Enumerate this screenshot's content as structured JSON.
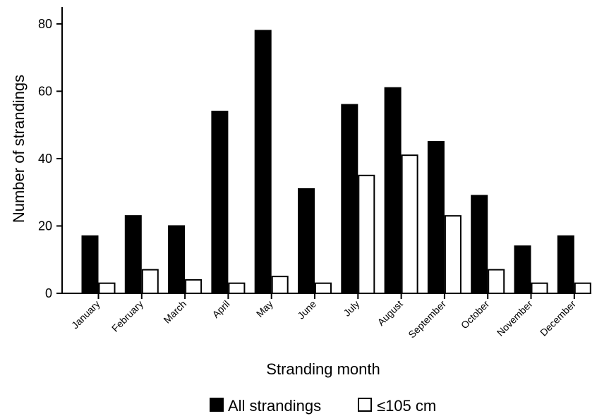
{
  "chart_data": {
    "type": "bar",
    "title": "",
    "xlabel": "Stranding month",
    "ylabel": "Number of strandings",
    "ylim": [
      0,
      85
    ],
    "yticks": [
      0,
      20,
      40,
      60,
      80
    ],
    "grid": false,
    "legend_position": "bottom",
    "categories": [
      "January",
      "February",
      "March",
      "April",
      "May",
      "June",
      "July",
      "August",
      "September",
      "October",
      "November",
      "December"
    ],
    "series": [
      {
        "name": "All strandings",
        "color": "#000000",
        "values": [
          17,
          23,
          20,
          54,
          78,
          31,
          56,
          61,
          45,
          29,
          14,
          17
        ]
      },
      {
        "name": "≤105 cm",
        "color": "#ffffff",
        "values": [
          3,
          7,
          4,
          3,
          5,
          3,
          35,
          41,
          23,
          7,
          3,
          3
        ]
      }
    ]
  }
}
